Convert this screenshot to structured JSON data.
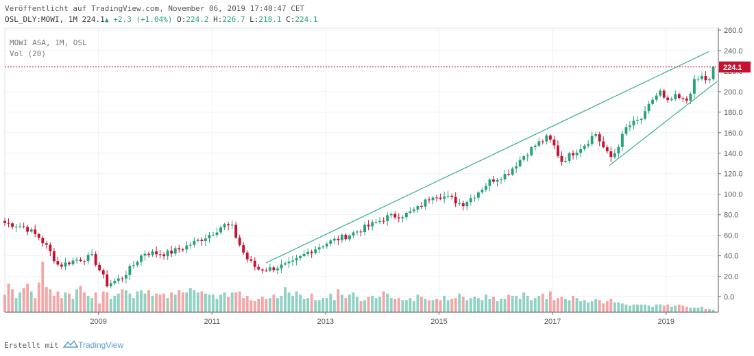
{
  "header": {
    "published": "Veröffentlicht auf TradingView.com, November 06, 2019 17:40:47 CET",
    "symbol_line": "OSL_DLY:MOWI, 1M",
    "last": "224.1",
    "change": "+2.3 (+1.04%)",
    "o_label": "O:",
    "o_value": "224.2",
    "h_label": "H:",
    "h_value": "226.7",
    "l_label": "L:",
    "l_value": "218.1",
    "c_label": "C:",
    "c_value": "224.1"
  },
  "legend": {
    "symbol": "MOWI ASA, 1M, OSL",
    "volume": "Vol (20)"
  },
  "footer": {
    "created_with": "Erstellt mit",
    "brand": "TradingView"
  },
  "colors": {
    "up": "#26a17a",
    "down": "#c8102e",
    "vol_up": "#8fd1c3",
    "vol_down": "#f4a5a5",
    "trend": "#3fb39a",
    "last_price": "#c8102e"
  },
  "chart_data": {
    "type": "candlestick",
    "title": "MOWI ASA, 1M, OSL",
    "ylim": [
      -15,
      262
    ],
    "y_ticks": [
      260,
      240,
      220,
      200,
      180,
      160,
      140,
      120,
      100,
      80,
      60,
      40,
      20,
      0
    ],
    "y_tick_labels": [
      "260.0",
      "240.0",
      "220.0",
      "200.0",
      "180.0",
      "160.0",
      "140.0",
      "120.0",
      "100.0",
      "80.0",
      "60.0",
      "40.0",
      "20.0",
      "0.0"
    ],
    "x_ticks": [
      "2009",
      "2011",
      "2013",
      "2015",
      "2017",
      "2019"
    ],
    "x_range_years": [
      2007.35,
      2019.92
    ],
    "last_price": 224.1,
    "last_price_label": "224.1",
    "trendlines": [
      {
        "from": [
          2011.95,
          33
        ],
        "to": [
          2019.75,
          239
        ]
      },
      {
        "from": [
          2018.0,
          128
        ],
        "to": [
          2019.9,
          210
        ]
      }
    ],
    "anchors": [
      [
        2007.35,
        72
      ],
      [
        2007.7,
        68
      ],
      [
        2007.95,
        58
      ],
      [
        2008.1,
        48
      ],
      [
        2008.3,
        30
      ],
      [
        2008.6,
        36
      ],
      [
        2008.9,
        39
      ],
      [
        2009.15,
        12
      ],
      [
        2009.4,
        18
      ],
      [
        2009.6,
        30
      ],
      [
        2009.8,
        43
      ],
      [
        2010.2,
        42
      ],
      [
        2010.5,
        48
      ],
      [
        2010.8,
        56
      ],
      [
        2011.0,
        62
      ],
      [
        2011.2,
        70
      ],
      [
        2011.35,
        68
      ],
      [
        2011.45,
        55
      ],
      [
        2011.6,
        38
      ],
      [
        2011.8,
        27
      ],
      [
        2012.0,
        27
      ],
      [
        2012.4,
        32
      ],
      [
        2012.7,
        44
      ],
      [
        2013.0,
        52
      ],
      [
        2013.4,
        60
      ],
      [
        2013.8,
        70
      ],
      [
        2014.1,
        78
      ],
      [
        2014.4,
        80
      ],
      [
        2014.6,
        85
      ],
      [
        2014.9,
        100
      ],
      [
        2015.2,
        96
      ],
      [
        2015.4,
        90
      ],
      [
        2015.6,
        98
      ],
      [
        2015.9,
        113
      ],
      [
        2016.2,
        120
      ],
      [
        2016.5,
        138
      ],
      [
        2016.7,
        148
      ],
      [
        2016.9,
        155
      ],
      [
        2017.0,
        150
      ],
      [
        2017.15,
        132
      ],
      [
        2017.4,
        142
      ],
      [
        2017.6,
        150
      ],
      [
        2017.75,
        160
      ],
      [
        2017.95,
        140
      ],
      [
        2018.05,
        135
      ],
      [
        2018.3,
        165
      ],
      [
        2018.6,
        175
      ],
      [
        2018.75,
        192
      ],
      [
        2018.9,
        200
      ],
      [
        2019.0,
        188
      ],
      [
        2019.15,
        195
      ],
      [
        2019.35,
        190
      ],
      [
        2019.5,
        210
      ],
      [
        2019.65,
        215
      ],
      [
        2019.75,
        208
      ],
      [
        2019.83,
        224
      ]
    ],
    "volume": [
      16,
      26,
      21,
      13,
      18,
      22,
      26,
      19,
      13,
      27,
      46,
      23,
      21,
      15,
      19,
      13,
      18,
      17,
      12,
      21,
      24,
      18,
      15,
      13,
      18,
      8,
      19,
      18,
      12,
      15,
      17,
      21,
      20,
      17,
      13,
      19,
      20,
      17,
      20,
      15,
      17,
      16,
      17,
      13,
      18,
      16,
      20,
      18,
      18,
      22,
      20,
      18,
      19,
      17,
      16,
      16,
      12,
      16,
      18,
      14,
      18,
      18,
      19,
      13,
      15,
      11,
      10,
      12,
      14,
      12,
      13,
      16,
      13,
      15,
      23,
      18,
      15,
      19,
      16,
      12,
      13,
      17,
      11,
      11,
      13,
      13,
      17,
      11,
      21,
      16,
      13,
      16,
      18,
      14,
      10,
      11,
      14,
      15,
      13,
      14,
      19,
      17,
      13,
      12,
      13,
      11,
      11,
      13,
      10,
      16,
      14,
      12,
      11,
      11,
      12,
      11,
      15,
      11,
      12,
      13,
      17,
      14,
      11,
      13,
      14,
      13,
      11,
      16,
      12,
      14,
      10,
      12,
      12,
      16,
      15,
      15,
      12,
      18,
      15,
      11,
      13,
      15,
      17,
      12,
      19,
      11,
      13,
      14,
      12,
      11,
      15,
      13,
      10,
      11,
      9,
      10,
      12,
      11,
      8,
      10,
      12,
      9,
      9,
      8,
      7,
      6,
      7,
      7,
      7,
      7,
      6,
      5,
      7,
      7,
      6,
      7,
      5,
      6,
      7,
      6,
      5,
      4,
      4,
      4,
      5,
      3,
      3,
      2
    ]
  }
}
